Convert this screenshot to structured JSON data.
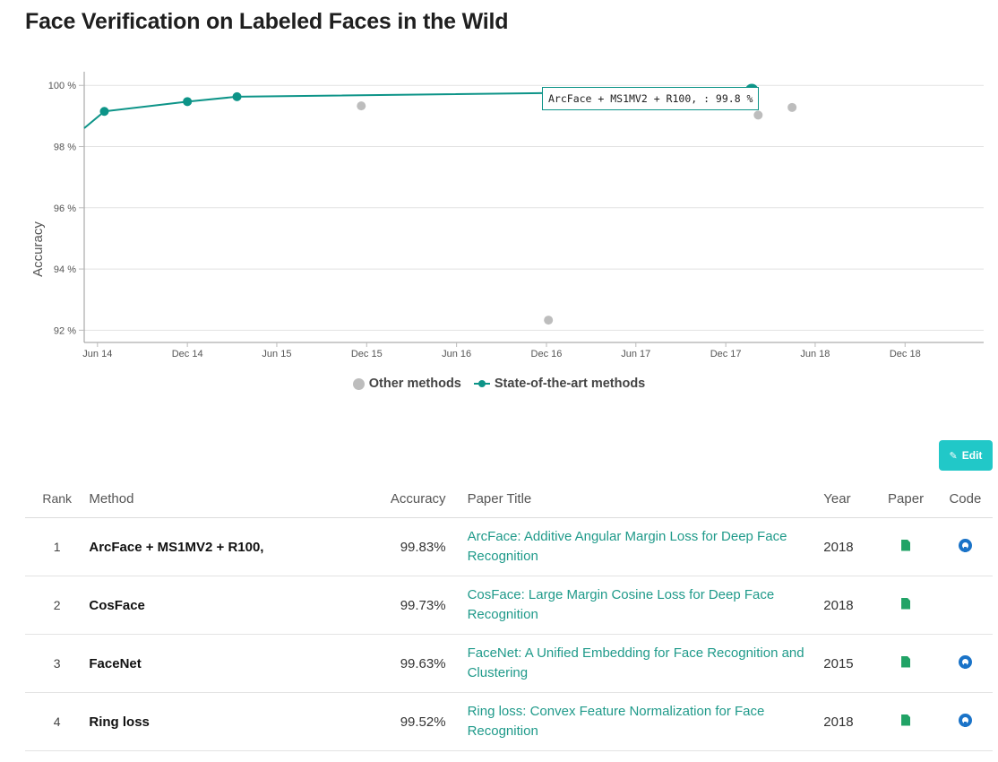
{
  "page": {
    "title": "Face Verification on Labeled Faces in the Wild"
  },
  "chart_data": {
    "type": "scatter",
    "ylabel": "Accuracy",
    "ylim": [
      91.6,
      100.3
    ],
    "y_ticks": [
      {
        "value": 92,
        "label": "92 %"
      },
      {
        "value": 94,
        "label": "94 %"
      },
      {
        "value": 96,
        "label": "96 %"
      },
      {
        "value": 98,
        "label": "98 %"
      },
      {
        "value": 100,
        "label": "100 %"
      }
    ],
    "x_range": [
      "2014-05-05",
      "2019-05-10"
    ],
    "x_ticks": [
      {
        "date": "2014-06-01",
        "label": "Jun 14"
      },
      {
        "date": "2014-12-01",
        "label": "Dec 14"
      },
      {
        "date": "2015-06-01",
        "label": "Jun 15"
      },
      {
        "date": "2015-12-01",
        "label": "Dec 15"
      },
      {
        "date": "2016-06-01",
        "label": "Jun 16"
      },
      {
        "date": "2016-12-01",
        "label": "Dec 16"
      },
      {
        "date": "2017-06-01",
        "label": "Jun 17"
      },
      {
        "date": "2017-12-01",
        "label": "Dec 17"
      },
      {
        "date": "2018-06-01",
        "label": "Jun 18"
      },
      {
        "date": "2018-12-01",
        "label": "Dec 18"
      }
    ],
    "grid": true,
    "legend_position": "bottom",
    "series": [
      {
        "name": "Other methods",
        "color": "#bdbdbd",
        "points": [
          {
            "date": "2015-11-20",
            "y": 99.33
          },
          {
            "date": "2016-12-05",
            "y": 92.33
          },
          {
            "date": "2017-04-15",
            "y": 99.4
          },
          {
            "date": "2018-01-20",
            "y": 99.52
          },
          {
            "date": "2018-02-05",
            "y": 99.03
          },
          {
            "date": "2018-04-15",
            "y": 99.28
          }
        ]
      },
      {
        "name": "State-of-the-art methods",
        "color": "#0d9488",
        "points": [
          {
            "date": "2014-05-05",
            "y": 98.6
          },
          {
            "date": "2014-06-15",
            "y": 99.15
          },
          {
            "date": "2014-12-01",
            "y": 99.47
          },
          {
            "date": "2015-03-12",
            "y": 99.63
          },
          {
            "date": "2018-01-23",
            "y": 99.83
          }
        ]
      }
    ],
    "tooltip": "ArcFace + MS1MV2 + R100, : 99.8 %"
  },
  "legend": {
    "other": "Other methods",
    "sota": "State-of-the-art methods"
  },
  "toolbar": {
    "edit_label": "Edit"
  },
  "table": {
    "headers": {
      "rank": "Rank",
      "method": "Method",
      "accuracy": "Accuracy",
      "title": "Paper Title",
      "year": "Year",
      "paper": "Paper",
      "code": "Code"
    },
    "rows": [
      {
        "rank": "1",
        "method": "ArcFace + MS1MV2 + R100,",
        "accuracy": "99.83%",
        "title": "ArcFace: Additive Angular Margin Loss for Deep Face Recognition",
        "year": "2018",
        "has_code": true
      },
      {
        "rank": "2",
        "method": "CosFace",
        "accuracy": "99.73%",
        "title": "CosFace: Large Margin Cosine Loss for Deep Face Recognition",
        "year": "2018",
        "has_code": false
      },
      {
        "rank": "3",
        "method": "FaceNet",
        "accuracy": "99.63%",
        "title": "FaceNet: A Unified Embedding for Face Recognition and Clustering",
        "year": "2015",
        "has_code": true
      },
      {
        "rank": "4",
        "method": "Ring loss",
        "accuracy": "99.52%",
        "title": "Ring loss: Convex Feature Normalization for Face Recognition",
        "year": "2018",
        "has_code": true
      }
    ],
    "paper_icon": "file-icon",
    "code_icon": "github-icon"
  }
}
